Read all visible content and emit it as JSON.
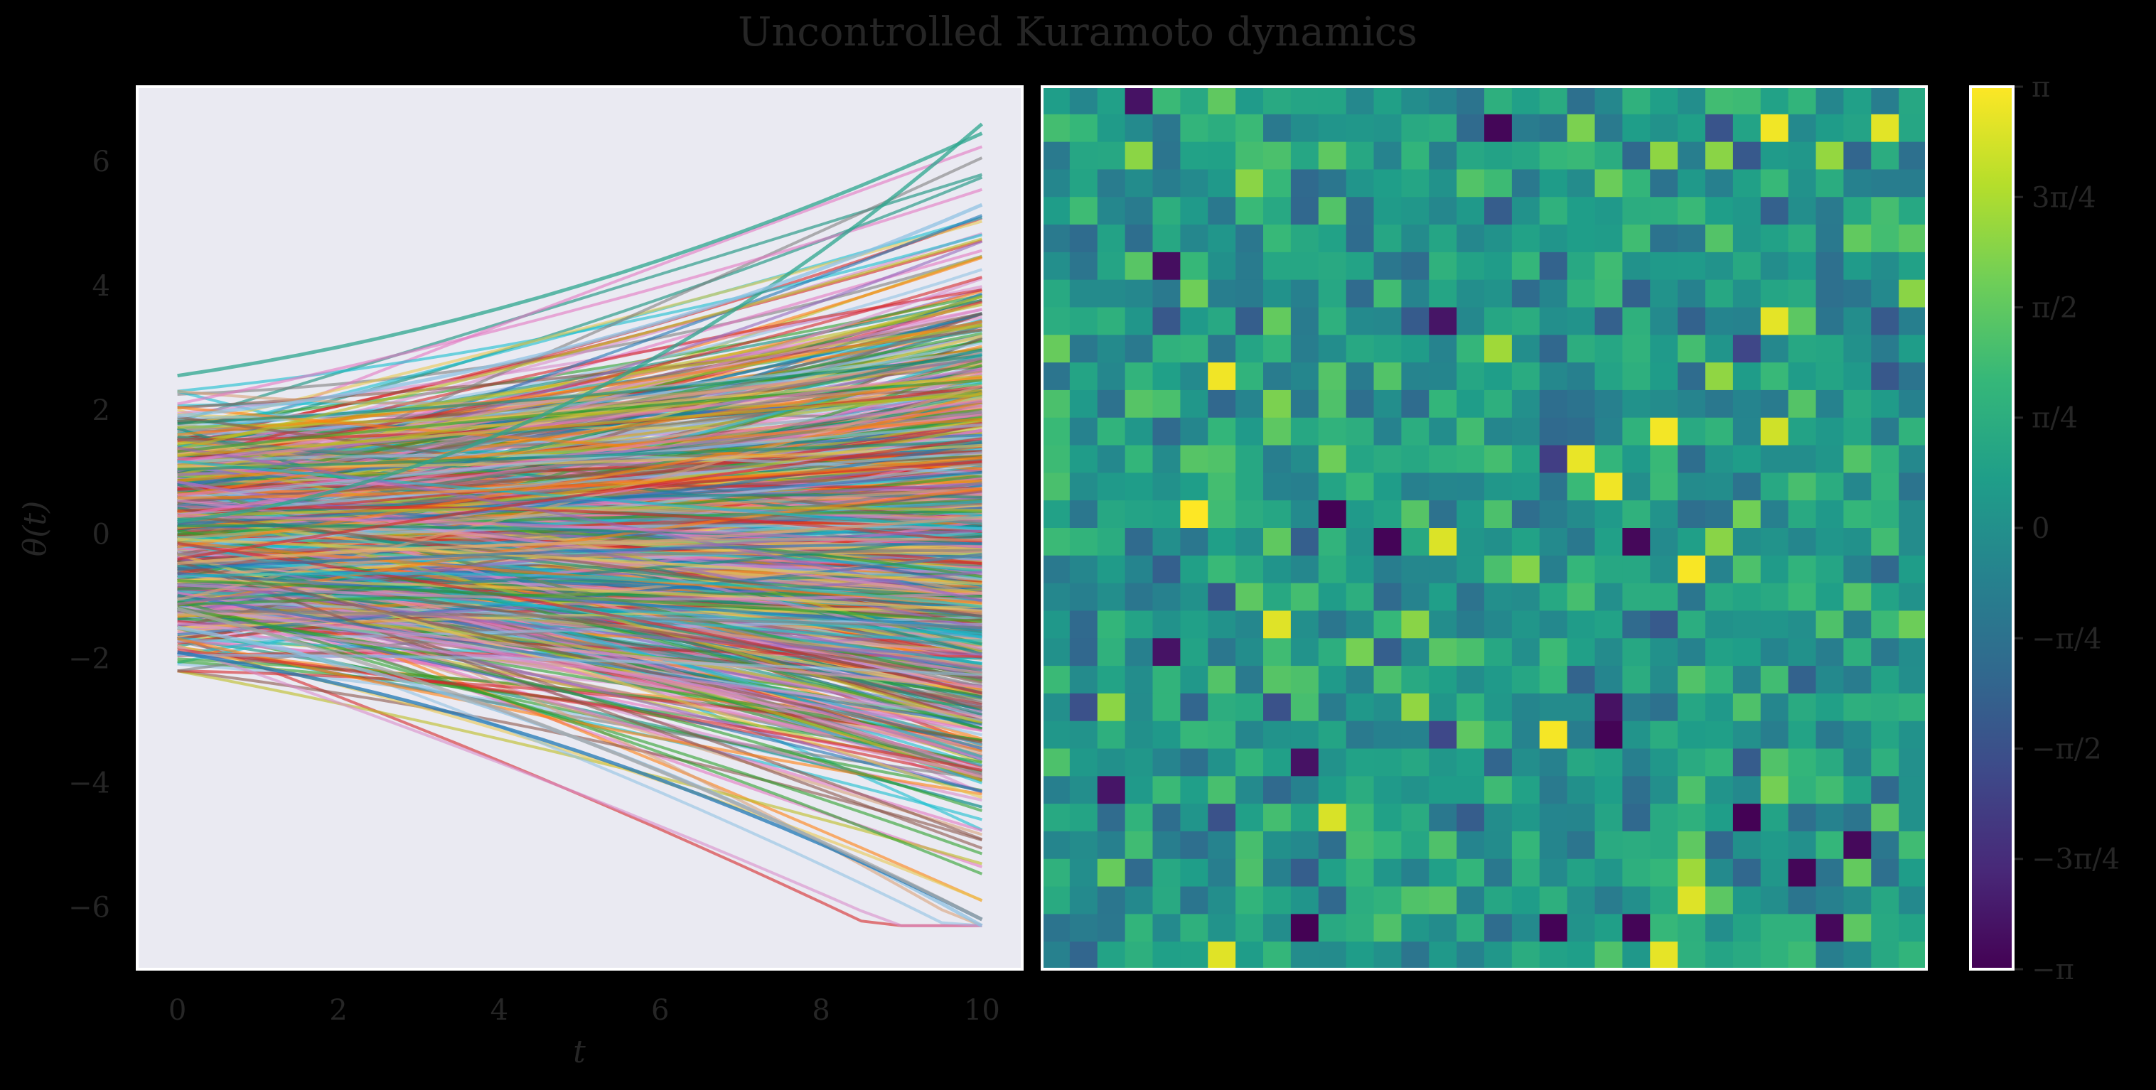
{
  "figure": {
    "title": "Uncontrolled Kuramoto dynamics",
    "background": "#000000",
    "text_color": "#262626"
  },
  "chart_data": [
    {
      "type": "line",
      "name": "phase-trajectories",
      "xlabel": "t",
      "ylabel": "θ(t)",
      "xlim": [
        -0.5,
        10.5
      ],
      "ylim": [
        -7.0,
        7.2
      ],
      "xticks": [
        0,
        2,
        4,
        6,
        8,
        10
      ],
      "xtick_labels": [
        "0",
        "2",
        "4",
        "6",
        "8",
        "10"
      ],
      "yticks": [
        -6,
        -4,
        -2,
        0,
        2,
        4,
        6
      ],
      "ytick_labels": [
        "−6",
        "−4",
        "−2",
        "0",
        "2",
        "4",
        "6"
      ],
      "grid": false,
      "legend": "none",
      "plot_background": "#eaeaf2",
      "palette": [
        "#1f77b4",
        "#ff7f0e",
        "#2ca02c",
        "#d62728",
        "#9467bd",
        "#8c564b",
        "#e377c2",
        "#7f7f7f",
        "#bcbd22",
        "#17becf",
        "#0f8f7a",
        "#8fc1e3",
        "#d9a27a",
        "#e8c850",
        "#d98cc9"
      ],
      "n_series": 1024,
      "x_range": [
        0,
        10
      ],
      "initial_range": [
        -2.2,
        2.6
      ],
      "final_range": [
        -6.3,
        6.6
      ]
    },
    {
      "type": "heatmap",
      "name": "final-phase-grid",
      "rows": 32,
      "cols": 32,
      "colormap": "viridis",
      "colormap_stops": [
        "#440154",
        "#482878",
        "#3e4989",
        "#31688e",
        "#26828e",
        "#1f9e89",
        "#35b779",
        "#6ece58",
        "#b5de2b",
        "#fde725"
      ],
      "vmin": -3.14159,
      "vmax": 3.14159,
      "colorbar_ticks": [
        -3.14159,
        -2.35619,
        -1.5708,
        -0.7854,
        0,
        0.7854,
        1.5708,
        2.35619,
        3.14159
      ],
      "colorbar_tick_labels": [
        "−π",
        "−3π/4",
        "−π/2",
        "−π/4",
        "0",
        "π/4",
        "π/2",
        "3π/4",
        "π"
      ]
    }
  ]
}
